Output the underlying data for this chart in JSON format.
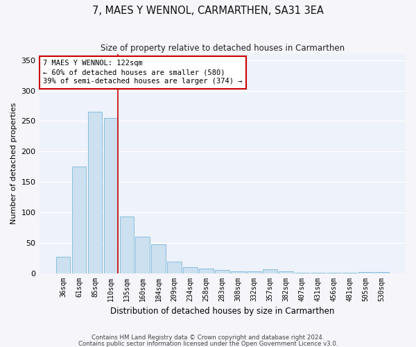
{
  "title": "7, MAES Y WENNOL, CARMARTHEN, SA31 3EA",
  "subtitle": "Size of property relative to detached houses in Carmarthen",
  "xlabel": "Distribution of detached houses by size in Carmarthen",
  "ylabel": "Number of detached properties",
  "footnote1": "Contains HM Land Registry data © Crown copyright and database right 2024.",
  "footnote2": "Contains public sector information licensed under the Open Government Licence v3.0.",
  "bar_color": "#cce0f0",
  "bar_edgecolor": "#7ab8d8",
  "annotation_box_edgecolor": "#cc0000",
  "vline_color": "#cc0000",
  "background_color": "#eef2fa",
  "fig_background": "#f5f5fa",
  "grid_color": "#ffffff",
  "categories": [
    "36sqm",
    "61sqm",
    "85sqm",
    "110sqm",
    "135sqm",
    "160sqm",
    "184sqm",
    "209sqm",
    "234sqm",
    "258sqm",
    "283sqm",
    "308sqm",
    "332sqm",
    "357sqm",
    "382sqm",
    "407sqm",
    "431sqm",
    "456sqm",
    "481sqm",
    "505sqm",
    "530sqm"
  ],
  "values": [
    27,
    175,
    265,
    255,
    93,
    60,
    47,
    19,
    10,
    8,
    5,
    3,
    3,
    6,
    3,
    1,
    1,
    1,
    1,
    2,
    2
  ],
  "vline_x": 3.45,
  "annotation_text": "7 MAES Y WENNOL: 122sqm\n← 60% of detached houses are smaller (580)\n39% of semi-detached houses are larger (374) →",
  "ylim": [
    0,
    360
  ],
  "yticks": [
    0,
    50,
    100,
    150,
    200,
    250,
    300,
    350
  ]
}
